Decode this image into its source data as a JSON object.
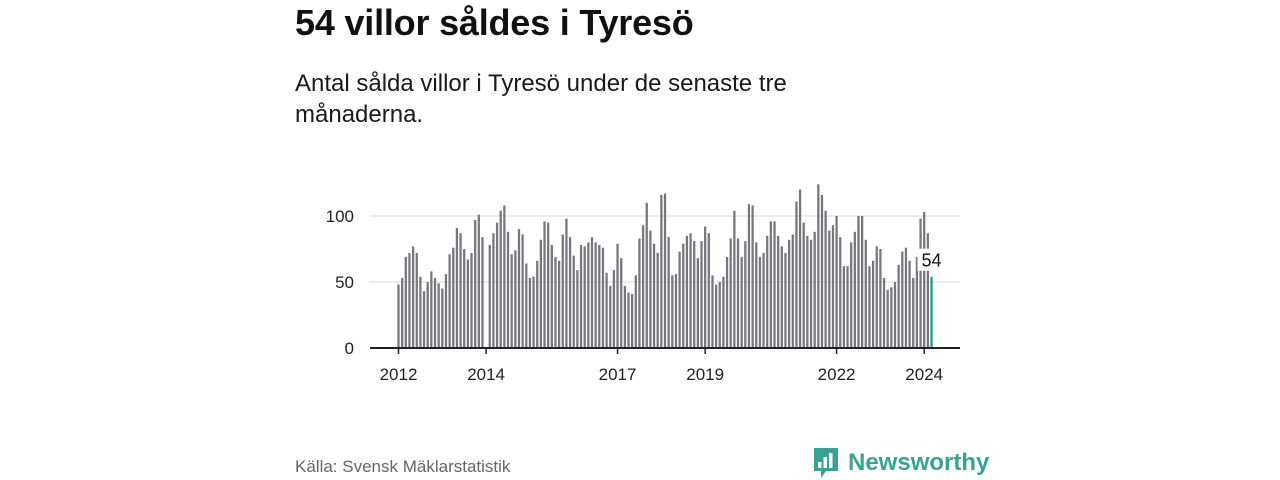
{
  "title": "54 villor såldes i Tyresö",
  "subtitle": "Antal sålda villor i Tyresö under de senaste tre månaderna.",
  "source": "Källa: Svensk Mäklarstatistik",
  "brand": {
    "name": "Newsworthy",
    "icon": "newsworthy-logo-icon",
    "color": "#3aa294"
  },
  "colors": {
    "bar": "#76767c",
    "highlight": "#1a9a8c",
    "grid": "#d8d8d8",
    "axis": "#222222"
  },
  "chart_data": {
    "type": "bar",
    "title": "Antal sålda villor i Tyresö",
    "xlabel": "",
    "ylabel": "",
    "ylim": [
      0,
      125
    ],
    "yticks": [
      0,
      50,
      100
    ],
    "xticks": [
      "2012",
      "2014",
      "2017",
      "2019",
      "2022",
      "2024"
    ],
    "x_start": "2012-01",
    "x_end": "2024-01",
    "highlight_label": "54",
    "values": [
      48,
      53,
      69,
      72,
      77,
      72,
      54,
      43,
      50,
      58,
      53,
      49,
      45,
      56,
      71,
      76,
      91,
      87,
      75,
      67,
      72,
      97,
      101,
      84,
      0,
      78,
      87,
      95,
      104,
      108,
      88,
      71,
      74,
      90,
      86,
      64,
      53,
      54,
      66,
      82,
      96,
      95,
      78,
      69,
      66,
      86,
      98,
      84,
      70,
      59,
      78,
      77,
      80,
      84,
      80,
      78,
      76,
      57,
      47,
      59,
      79,
      68,
      47,
      42,
      41,
      55,
      83,
      93,
      110,
      89,
      79,
      72,
      116,
      117,
      84,
      55,
      56,
      73,
      79,
      85,
      87,
      81,
      68,
      81,
      92,
      87,
      55,
      48,
      50,
      54,
      69,
      83,
      104,
      83,
      69,
      81,
      109,
      108,
      80,
      69,
      72,
      85,
      96,
      96,
      85,
      77,
      72,
      82,
      86,
      111,
      120,
      95,
      85,
      82,
      88,
      124,
      116,
      104,
      89,
      93,
      100,
      84,
      62,
      62,
      80,
      88,
      100,
      100,
      82,
      62,
      66,
      77,
      75,
      53,
      44,
      46,
      50,
      63,
      73,
      76,
      66,
      53,
      69,
      98,
      103,
      87,
      54
    ]
  }
}
